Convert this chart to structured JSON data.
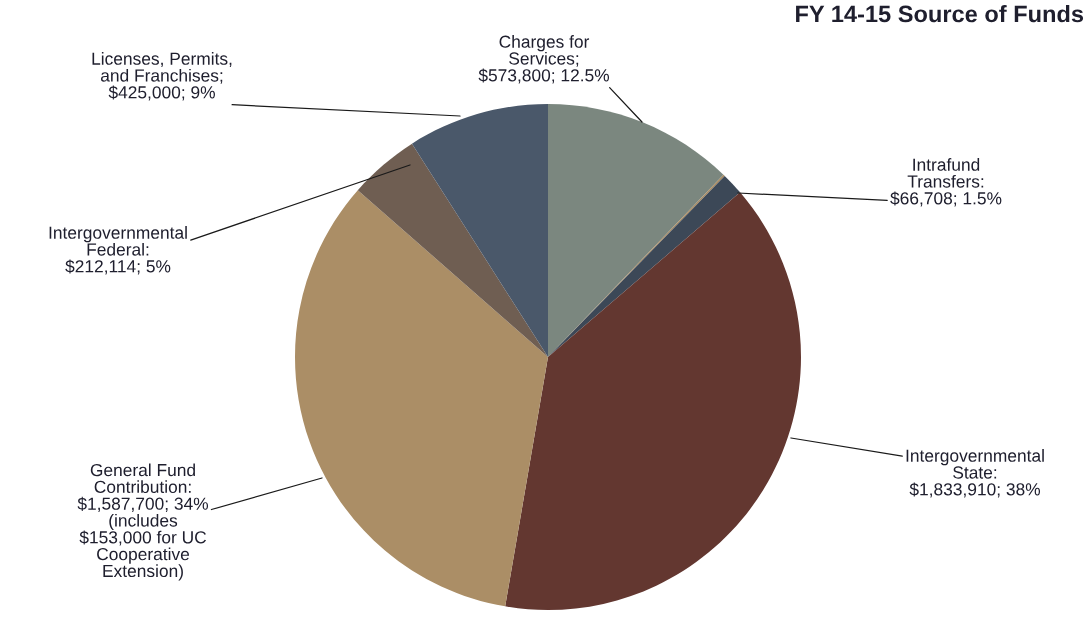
{
  "chart_data": {
    "type": "pie",
    "title": "FY 14-15 Source of Funds",
    "categories": [
      "Charges for\nServices;\n$573,800; 12.5%",
      null,
      "Intrafund\nTransfers:\n$66,708; 1.5%",
      "Intergovernmental\nState:\n$1,833,910; 38%",
      "General Fund\nContribution:\n$1,587,700; 34%\n(includes\n$153,000 for UC\nCooperative\nExtension)",
      "Intergovernmental\nFederal:\n$212,114; 5%",
      "Licenses, Permits,\nand Franchises;\n$425,000; 9%"
    ],
    "values": [
      573800,
      5000,
      66708,
      1833910,
      1587700,
      212114,
      425000
    ],
    "colors": [
      "#7b877f",
      "#a88b63",
      "#3c4857",
      "#633730",
      "#ab8e66",
      "#6f5e52",
      "#4a586a"
    ],
    "legend": false
  }
}
